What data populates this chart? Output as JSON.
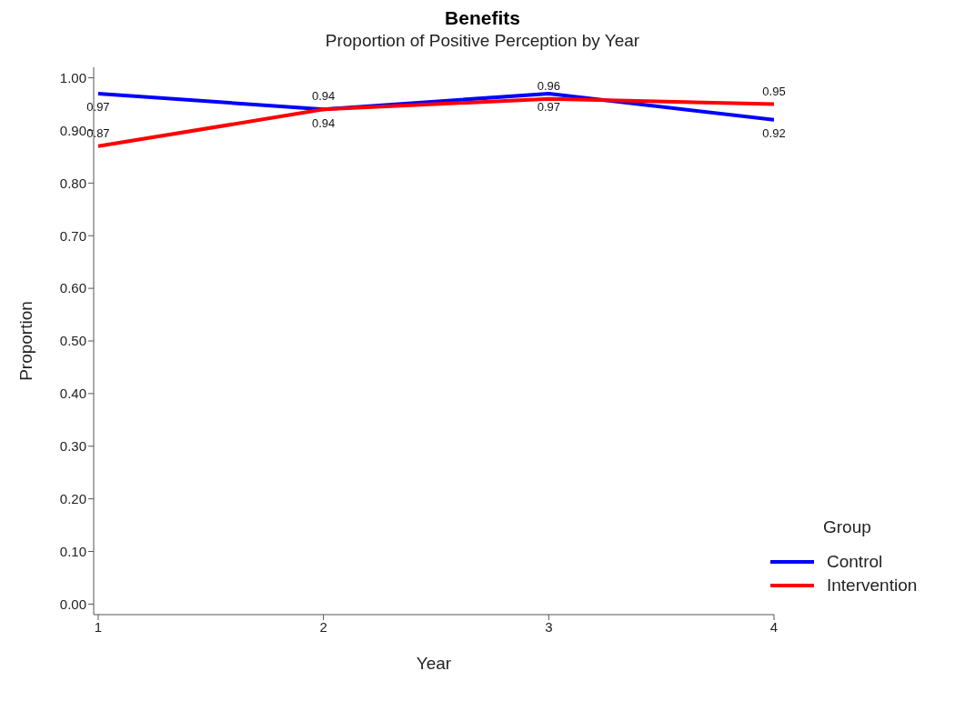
{
  "chart_data": {
    "type": "line",
    "title": "Benefits",
    "subtitle": "Proportion of Positive Perception by Year",
    "xlabel": "Year",
    "ylabel": "Proportion",
    "legend_title": "Group",
    "legend": "bottom right",
    "x": [
      1,
      2,
      3,
      4
    ],
    "xlim": [
      0.98,
      4
    ],
    "xticks": [
      1,
      2,
      3,
      4
    ],
    "ylim": [
      -0.02,
      1.02
    ],
    "yticks": [
      {
        "value": 0,
        "label": "0.00"
      },
      {
        "value": 0.1,
        "label": "0.10"
      },
      {
        "value": 0.2,
        "label": "0.20"
      },
      {
        "value": 0.3,
        "label": "0.30"
      },
      {
        "value": 0.4,
        "label": "0.40"
      },
      {
        "value": 0.5,
        "label": "0.50"
      },
      {
        "value": 0.6,
        "label": "0.60"
      },
      {
        "value": 0.7,
        "label": "0.70"
      },
      {
        "value": 0.8,
        "label": "0.80"
      },
      {
        "value": 0.9,
        "label": "0.90"
      },
      {
        "value": 1,
        "label": "1.00"
      }
    ],
    "data_labels": true,
    "marker": "none",
    "line_style": "solid",
    "grid": false,
    "series": [
      {
        "name": "Control",
        "color": "#0000ff",
        "values": [
          0.97,
          0.94,
          0.97,
          0.92
        ]
      },
      {
        "name": "Intervention",
        "color": "#ff0000",
        "values": [
          0.87,
          0.94,
          0.96,
          0.95
        ]
      }
    ]
  }
}
